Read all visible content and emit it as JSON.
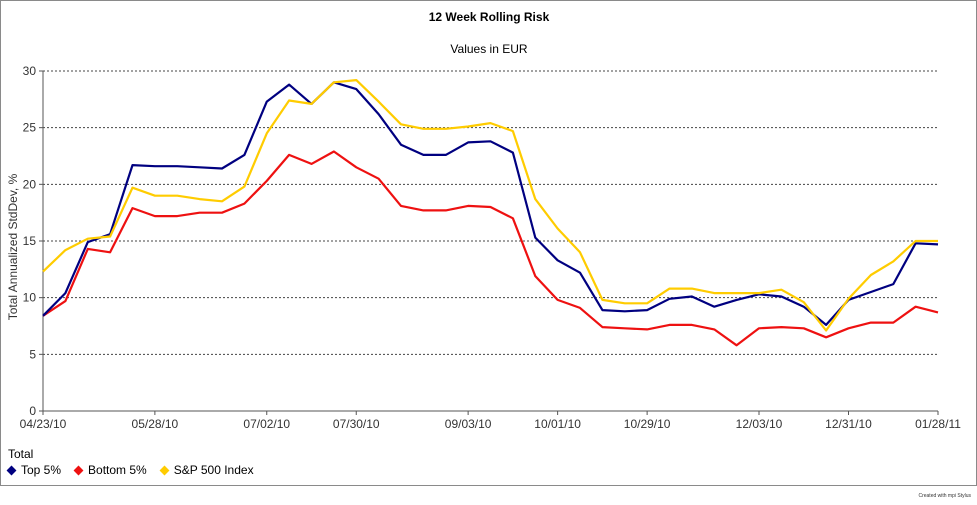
{
  "chart_data": {
    "type": "line",
    "title": "12 Week Rolling Risk",
    "subtitle": "Values in EUR",
    "ylabel": "Total Annualized StdDev, %",
    "xlabel": "",
    "ylim": [
      0,
      30
    ],
    "yticks": [
      0,
      5,
      10,
      15,
      20,
      25,
      30
    ],
    "x_tick_labels": [
      "04/23/10",
      "05/28/10",
      "07/02/10",
      "07/30/10",
      "09/03/10",
      "10/01/10",
      "10/29/10",
      "12/03/10",
      "12/31/10",
      "01/28/11"
    ],
    "x_tick_positions": [
      0,
      5,
      10,
      14,
      19,
      23,
      27,
      32,
      36,
      40
    ],
    "grid": "horizontal-dotted",
    "legend_title": "Total",
    "legend_position": "bottom-left",
    "x": [
      "04/23/10",
      "04/30/10",
      "05/07/10",
      "05/14/10",
      "05/21/10",
      "05/28/10",
      "06/04/10",
      "06/11/10",
      "06/18/10",
      "06/25/10",
      "07/02/10",
      "07/09/10",
      "07/16/10",
      "07/23/10",
      "07/30/10",
      "08/06/10",
      "08/13/10",
      "08/20/10",
      "08/27/10",
      "09/03/10",
      "09/10/10",
      "09/17/10",
      "09/24/10",
      "10/01/10",
      "10/08/10",
      "10/15/10",
      "10/22/10",
      "10/29/10",
      "11/05/10",
      "11/12/10",
      "11/19/10",
      "11/26/10",
      "12/03/10",
      "12/10/10",
      "12/17/10",
      "12/24/10",
      "12/31/10",
      "01/07/11",
      "01/14/11",
      "01/21/11",
      "01/28/11"
    ],
    "series": [
      {
        "name": "Top 5%",
        "color": "#000080",
        "values": [
          8.4,
          10.4,
          14.9,
          15.6,
          21.7,
          21.6,
          21.6,
          21.5,
          21.4,
          22.6,
          27.3,
          28.8,
          27.1,
          29.0,
          28.4,
          26.2,
          23.5,
          22.6,
          22.6,
          23.7,
          23.8,
          22.8,
          15.3,
          13.3,
          12.2,
          8.9,
          8.8,
          8.9,
          9.9,
          10.1,
          9.2,
          9.8,
          10.3,
          10.1,
          9.2,
          7.6,
          9.8,
          10.5,
          11.2,
          14.8,
          14.7
        ]
      },
      {
        "name": "Bottom 5%",
        "color": "#ee1111",
        "values": [
          8.4,
          9.7,
          14.3,
          14.0,
          17.9,
          17.2,
          17.2,
          17.5,
          17.5,
          18.3,
          20.3,
          22.6,
          21.8,
          22.9,
          21.5,
          20.5,
          18.1,
          17.7,
          17.7,
          18.1,
          18.0,
          17.0,
          11.9,
          9.8,
          9.1,
          7.4,
          7.3,
          7.2,
          7.6,
          7.6,
          7.2,
          5.8,
          7.3,
          7.4,
          7.3,
          6.5,
          7.3,
          7.8,
          7.8,
          9.2,
          8.7
        ]
      },
      {
        "name": "S&P 500 Index",
        "color": "#ffcc00",
        "values": [
          12.3,
          14.2,
          15.2,
          15.4,
          19.7,
          19.0,
          19.0,
          18.7,
          18.5,
          19.8,
          24.5,
          27.4,
          27.1,
          29.0,
          29.2,
          27.3,
          25.3,
          24.9,
          24.9,
          25.1,
          25.4,
          24.7,
          18.7,
          16.1,
          14.0,
          9.8,
          9.5,
          9.5,
          10.8,
          10.8,
          10.4,
          10.4,
          10.4,
          10.7,
          9.6,
          7.1,
          9.9,
          12.0,
          13.2,
          15.0,
          15.0
        ]
      }
    ]
  },
  "credit": "Created with mpi Stylus"
}
